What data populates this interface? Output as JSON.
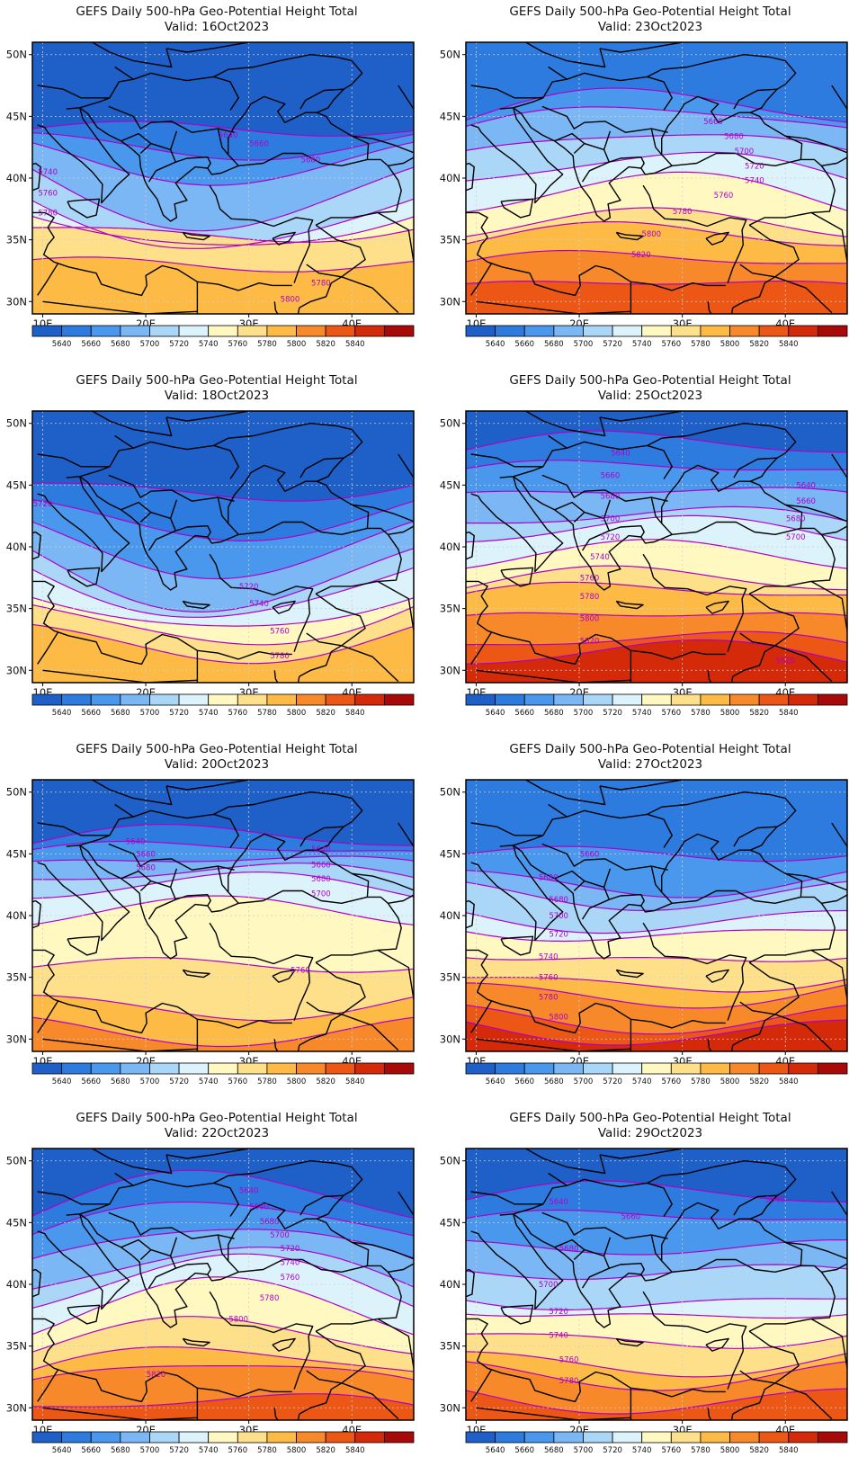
{
  "figure": {
    "title": "GEFS Daily 500-hPa Geo-Potential Height Total",
    "valid_prefix": "Valid: "
  },
  "axes": {
    "lat_labels": [
      "50N",
      "45N",
      "40N",
      "35N",
      "30N"
    ],
    "lat_values": [
      50,
      45,
      40,
      35,
      30
    ],
    "lon_labels": [
      "10E",
      "20E",
      "30E",
      "40E"
    ],
    "lon_values": [
      10,
      20,
      30,
      40
    ],
    "lon_range": [
      9,
      46
    ],
    "lat_range": [
      29,
      51
    ]
  },
  "colorbar": {
    "levels": [
      "5640",
      "5660",
      "5680",
      "5700",
      "5720",
      "5740",
      "5760",
      "5780",
      "5800",
      "5820",
      "5840"
    ],
    "colors": [
      "#1e5fc8",
      "#2e7be0",
      "#4a97ee",
      "#7ab7f4",
      "#aad6f8",
      "#dcf3fc",
      "#fff8c0",
      "#ffe08a",
      "#fdbb45",
      "#f7892b",
      "#ec5715",
      "#d42a0a",
      "#a80a0a"
    ]
  },
  "contour_color": "#b000c8",
  "coast_color": "#000000",
  "panels": [
    {
      "valid": "16Oct2023",
      "base": 5640,
      "bases": [
        44,
        43,
        42,
        40,
        38,
        37,
        36,
        33
      ],
      "amp": [
        0,
        -1,
        -2,
        -4,
        -4,
        -3,
        -1,
        0
      ],
      "labels": [
        {
          "text": "5640",
          "lon": 28,
          "lat": 43.5
        },
        {
          "text": "5660",
          "lon": 31,
          "lat": 42.8
        },
        {
          "text": "5680",
          "lon": 36,
          "lat": 41.5
        },
        {
          "text": "5740",
          "lon": 10.5,
          "lat": 40.5
        },
        {
          "text": "5760",
          "lon": 10.5,
          "lat": 38.8
        },
        {
          "text": "5780",
          "lon": 10.5,
          "lat": 37.2
        },
        {
          "text": "5780",
          "lon": 37,
          "lat": 31.5
        },
        {
          "text": "5800",
          "lon": 34,
          "lat": 30.2
        }
      ]
    },
    {
      "valid": "23Oct2023",
      "base": 5660,
      "bases": [
        45,
        44,
        42,
        40,
        38,
        36,
        35,
        33,
        31
      ],
      "amp": [
        2,
        2,
        2,
        2,
        2,
        1,
        1,
        1,
        1
      ],
      "labels": [
        {
          "text": "5660",
          "lon": 33,
          "lat": 44.6
        },
        {
          "text": "5680",
          "lon": 35,
          "lat": 43.4
        },
        {
          "text": "5700",
          "lon": 36,
          "lat": 42.2
        },
        {
          "text": "5720",
          "lon": 37,
          "lat": 41.0
        },
        {
          "text": "5740",
          "lon": 37,
          "lat": 39.8
        },
        {
          "text": "5760",
          "lon": 34,
          "lat": 38.6
        },
        {
          "text": "5780",
          "lon": 30,
          "lat": 37.3
        },
        {
          "text": "5800",
          "lon": 27,
          "lat": 35.5
        },
        {
          "text": "5820",
          "lon": 26,
          "lat": 33.8
        }
      ]
    },
    {
      "valid": "18Oct2023",
      "base": 5640,
      "bases": [
        45,
        43,
        41,
        39,
        38,
        36,
        35,
        33
      ],
      "amp": [
        -1,
        -2,
        -3,
        -4,
        -4,
        -3,
        -3,
        -2
      ],
      "labels": [
        {
          "text": "5720",
          "lon": 10,
          "lat": 43.5
        },
        {
          "text": "5720",
          "lon": 30,
          "lat": 36.8
        },
        {
          "text": "5740",
          "lon": 31,
          "lat": 35.4
        },
        {
          "text": "5760",
          "lon": 33,
          "lat": 33.2
        },
        {
          "text": "5780",
          "lon": 33,
          "lat": 31.2
        }
      ]
    },
    {
      "valid": "25Oct2023",
      "base": 5640,
      "bases": [
        48,
        46,
        44,
        42,
        41,
        39,
        37,
        36,
        34,
        32,
        31
      ],
      "amp": [
        1,
        1,
        1,
        1,
        1,
        1,
        1,
        1,
        1,
        1,
        1
      ],
      "labels": [
        {
          "text": "5640",
          "lon": 24,
          "lat": 47.6
        },
        {
          "text": "5660",
          "lon": 23,
          "lat": 45.8
        },
        {
          "text": "5680",
          "lon": 23,
          "lat": 44.1
        },
        {
          "text": "5700",
          "lon": 23,
          "lat": 42.3
        },
        {
          "text": "5720",
          "lon": 23,
          "lat": 40.8
        },
        {
          "text": "5740",
          "lon": 22,
          "lat": 39.2
        },
        {
          "text": "5760",
          "lon": 21,
          "lat": 37.5
        },
        {
          "text": "5780",
          "lon": 21,
          "lat": 36.0
        },
        {
          "text": "5800",
          "lon": 21,
          "lat": 34.2
        },
        {
          "text": "5820",
          "lon": 21,
          "lat": 32.4
        },
        {
          "text": "5640",
          "lon": 42,
          "lat": 45.0
        },
        {
          "text": "5660",
          "lon": 42,
          "lat": 43.7
        },
        {
          "text": "5680",
          "lon": 41,
          "lat": 42.3
        },
        {
          "text": "5700",
          "lon": 41,
          "lat": 40.8
        },
        {
          "text": "5820",
          "lon": 40,
          "lat": 30.8
        }
      ]
    },
    {
      "valid": "20Oct2023",
      "base": 5640,
      "bases": [
        46,
        45,
        44,
        43,
        42,
        40,
        36,
        33,
        31
      ],
      "amp": [
        1,
        1,
        1,
        1,
        1,
        1,
        0,
        -1,
        -1
      ],
      "labels": [
        {
          "text": "5640",
          "lon": 19,
          "lat": 46.0
        },
        {
          "text": "5660",
          "lon": 20,
          "lat": 45.0
        },
        {
          "text": "5680",
          "lon": 20,
          "lat": 43.9
        },
        {
          "text": "5640",
          "lon": 37,
          "lat": 45.4
        },
        {
          "text": "5660",
          "lon": 37,
          "lat": 44.1
        },
        {
          "text": "5680",
          "lon": 37,
          "lat": 43.0
        },
        {
          "text": "5700",
          "lon": 37,
          "lat": 41.8
        },
        {
          "text": "5760",
          "lon": 35,
          "lat": 35.6
        }
      ]
    },
    {
      "valid": "27Oct2023",
      "base": 5660,
      "bases": [
        45,
        43,
        42,
        40,
        39,
        37,
        35,
        34,
        32,
        31
      ],
      "amp": [
        0,
        -1,
        -1,
        -1,
        -1,
        -1,
        -1,
        -1,
        -1,
        -1
      ],
      "labels": [
        {
          "text": "5660",
          "lon": 21,
          "lat": 45.0
        },
        {
          "text": "5680",
          "lon": 17,
          "lat": 43.1
        },
        {
          "text": "5680",
          "lon": 18,
          "lat": 41.3
        },
        {
          "text": "5700",
          "lon": 18,
          "lat": 40.0
        },
        {
          "text": "5720",
          "lon": 18,
          "lat": 38.5
        },
        {
          "text": "5740",
          "lon": 17,
          "lat": 36.7
        },
        {
          "text": "5760",
          "lon": 17,
          "lat": 35.0
        },
        {
          "text": "5780",
          "lon": 17,
          "lat": 33.4
        },
        {
          "text": "5800",
          "lon": 18,
          "lat": 31.8
        }
      ]
    },
    {
      "valid": "22Oct2023",
      "base": 5640,
      "bases": [
        46,
        44,
        42,
        40,
        39,
        37,
        35,
        33,
        32,
        30
      ],
      "amp": [
        3,
        3,
        3,
        3,
        3,
        3,
        2,
        2,
        2,
        1
      ],
      "labels": [
        {
          "text": "5640",
          "lon": 30,
          "lat": 47.6
        },
        {
          "text": "5660",
          "lon": 31,
          "lat": 46.3
        },
        {
          "text": "5680",
          "lon": 32,
          "lat": 45.1
        },
        {
          "text": "5700",
          "lon": 33,
          "lat": 44.0
        },
        {
          "text": "5720",
          "lon": 34,
          "lat": 42.9
        },
        {
          "text": "5740",
          "lon": 34,
          "lat": 41.8
        },
        {
          "text": "5760",
          "lon": 34,
          "lat": 40.6
        },
        {
          "text": "5780",
          "lon": 32,
          "lat": 38.9
        },
        {
          "text": "5800",
          "lon": 29,
          "lat": 37.2
        },
        {
          "text": "5820",
          "lon": 21,
          "lat": 32.7
        }
      ]
    },
    {
      "valid": "29Oct2023",
      "base": 5640,
      "bases": [
        47,
        45,
        43,
        41,
        39,
        38,
        36,
        34,
        33,
        31
      ],
      "amp": [
        1,
        1,
        0,
        0,
        -1,
        -1,
        -1,
        -1,
        -1,
        -1
      ],
      "labels": [
        {
          "text": "5640",
          "lon": 18,
          "lat": 46.7
        },
        {
          "text": "5660",
          "lon": 25,
          "lat": 45.5
        },
        {
          "text": "5680",
          "lon": 19,
          "lat": 42.9
        },
        {
          "text": "5700",
          "lon": 17,
          "lat": 40.0
        },
        {
          "text": "5720",
          "lon": 18,
          "lat": 37.8
        },
        {
          "text": "5740",
          "lon": 18,
          "lat": 35.9
        },
        {
          "text": "5760",
          "lon": 19,
          "lat": 33.9
        },
        {
          "text": "5780",
          "lon": 19,
          "lat": 32.2
        },
        {
          "text": "5640",
          "lon": 39,
          "lat": 46.9
        }
      ]
    }
  ]
}
